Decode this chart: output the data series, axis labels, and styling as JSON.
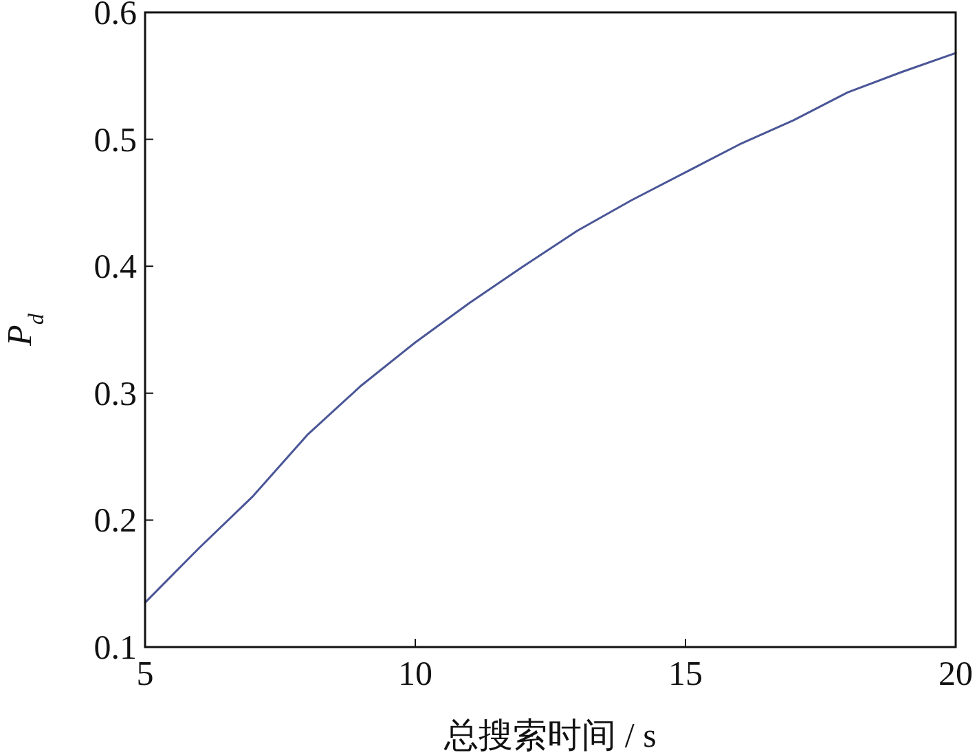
{
  "chart_data": {
    "type": "line",
    "xlabel": "总搜索时间 / s",
    "ylabel": "P$_{d}$",
    "x": [
      5,
      6,
      7,
      8,
      9,
      10,
      11,
      12,
      13,
      14,
      15,
      16,
      17,
      18,
      19,
      20
    ],
    "series": [
      {
        "color": "#4a5697",
        "values": [
          0.135,
          0.178,
          0.219,
          0.267,
          0.306,
          0.34,
          0.371,
          0.4,
          0.428,
          0.452,
          0.474,
          0.496,
          0.515,
          0.537,
          0.553,
          0.568
        ]
      }
    ],
    "xlim": [
      5,
      20
    ],
    "xticks": [
      5,
      10,
      15,
      20
    ],
    "ylim": [
      0.1,
      0.6
    ],
    "yticks": [
      0.1,
      0.2,
      0.3,
      0.4,
      0.5,
      0.6
    ],
    "grid": false
  }
}
